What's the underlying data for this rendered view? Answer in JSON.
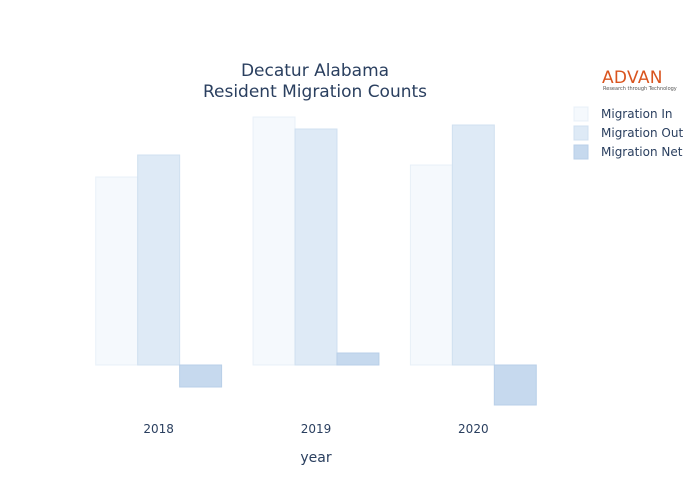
{
  "chart_data": {
    "type": "bar",
    "title_line1": "Decatur Alabama",
    "title_line2": "Resident Migration Counts",
    "xlabel": "year",
    "ylabel": "",
    "categories": [
      "2018",
      "2019",
      "2020"
    ],
    "series": [
      {
        "name": "Migration In",
        "values": [
          94,
          124,
          100
        ],
        "color": "#f5f9fd",
        "stroke": "#e8f0f8"
      },
      {
        "name": "Migration Out",
        "values": [
          105,
          118,
          120
        ],
        "color": "#deeaf6",
        "stroke": "#d0e0f0"
      },
      {
        "name": "Migration Net",
        "values": [
          -11,
          6,
          -20
        ],
        "color": "#c6d9ee",
        "stroke": "#b8cfe8"
      }
    ],
    "ylim": [
      -20,
      124
    ],
    "grid": false,
    "legend_position": "top-right"
  },
  "logo": {
    "text": "ADVAN",
    "tagline": "Research through Technology"
  }
}
